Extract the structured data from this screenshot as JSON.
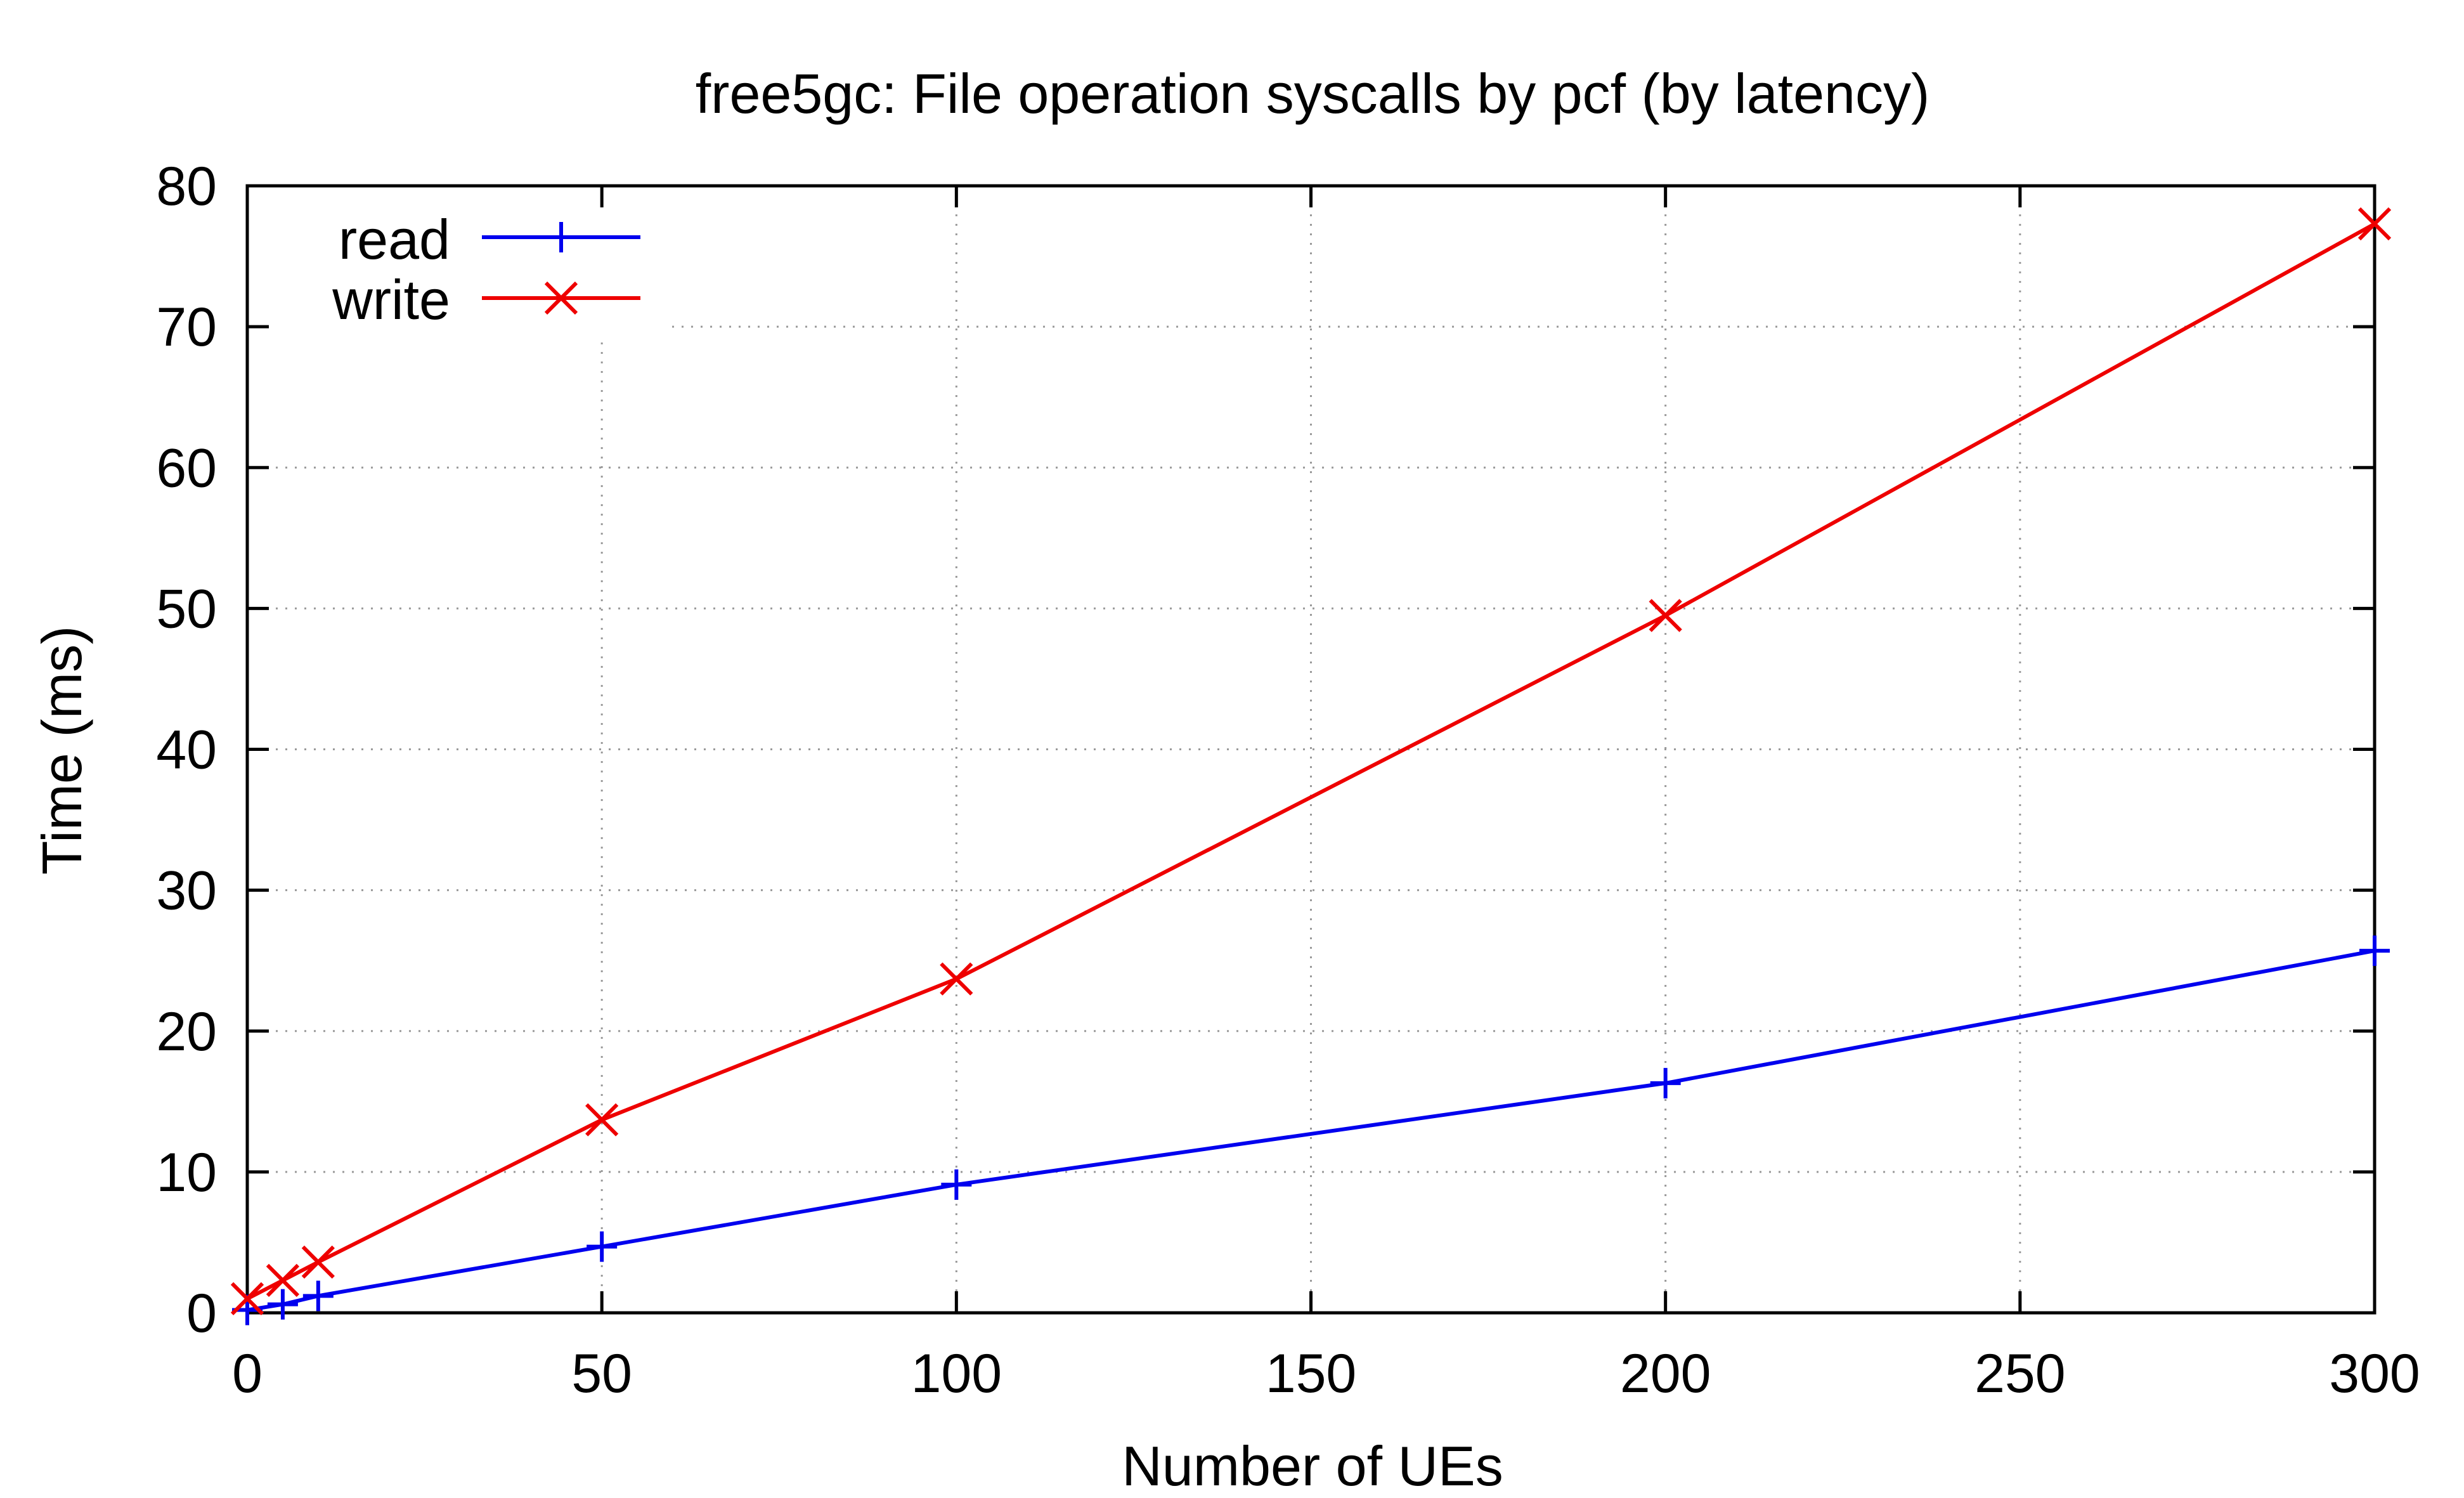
{
  "chart_data": {
    "type": "line",
    "title": "free5gc: File operation syscalls by pcf (by latency)",
    "xlabel": "Number of UEs",
    "ylabel": "Time (ms)",
    "xlim": [
      0,
      300
    ],
    "ylim": [
      0,
      80
    ],
    "xticks": [
      0,
      50,
      100,
      150,
      200,
      250,
      300
    ],
    "yticks": [
      0,
      10,
      20,
      30,
      40,
      50,
      60,
      70,
      80
    ],
    "grid": true,
    "legend_position": "top-left",
    "series": [
      {
        "name": "read",
        "color": "#0000ee",
        "marker": "plus",
        "x": [
          0,
          5,
          10,
          50,
          100,
          200,
          300
        ],
        "y": [
          0.2,
          0.6,
          1.2,
          4.7,
          9.1,
          16.3,
          25.7
        ]
      },
      {
        "name": "write",
        "color": "#ee0000",
        "marker": "cross",
        "x": [
          0,
          5,
          10,
          50,
          100,
          200,
          300
        ],
        "y": [
          1.0,
          2.3,
          3.6,
          13.7,
          23.7,
          49.5,
          77.3
        ]
      }
    ]
  }
}
